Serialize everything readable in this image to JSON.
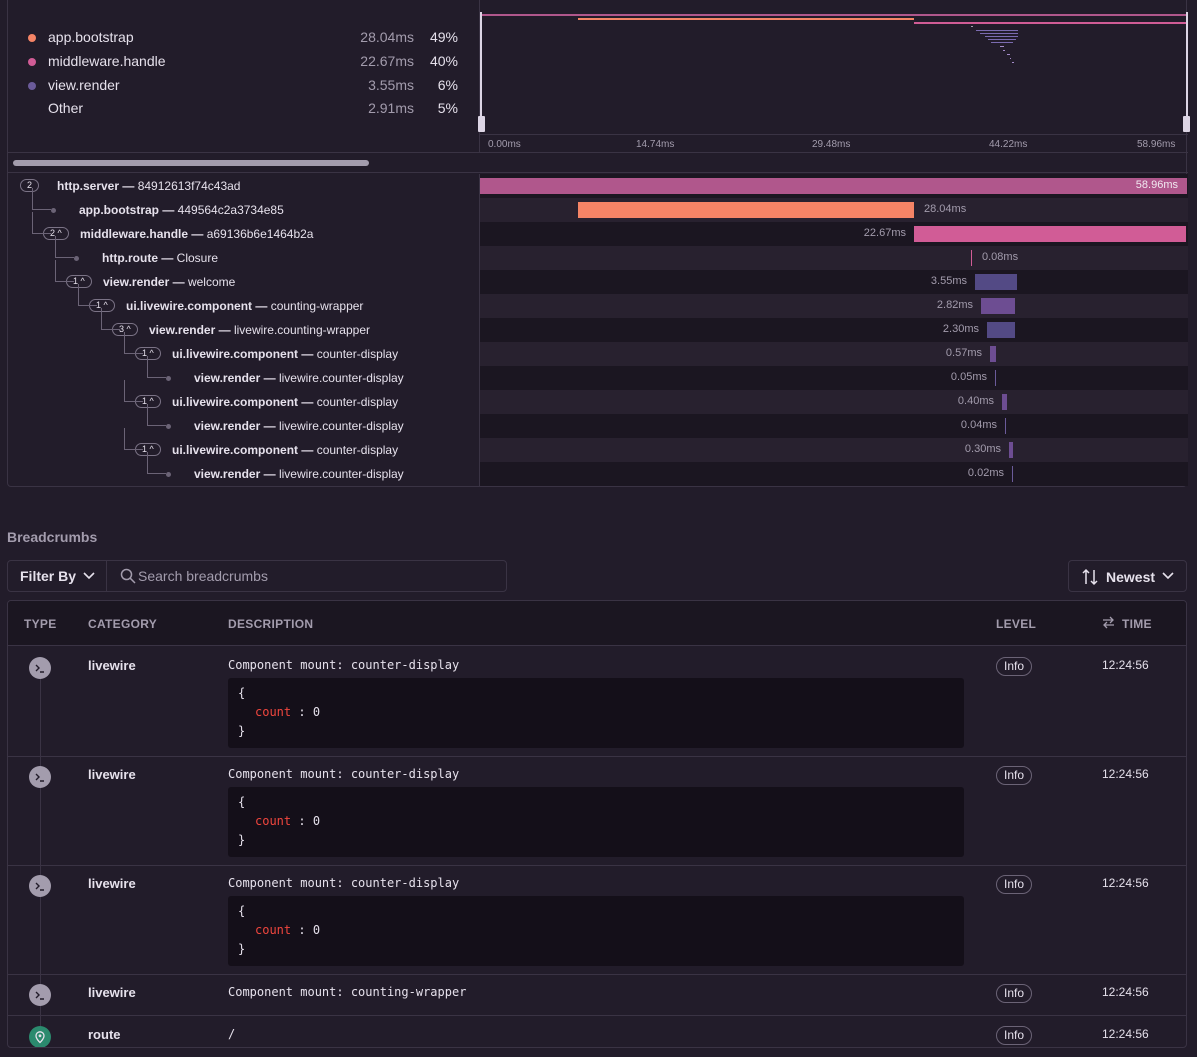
{
  "summary": [
    {
      "name": "app.bootstrap",
      "duration": "28.04ms",
      "percent": "49%",
      "color": "#f58466"
    },
    {
      "name": "middleware.handle",
      "duration": "22.67ms",
      "percent": "40%",
      "color": "#d15c96"
    },
    {
      "name": "view.render",
      "duration": "3.55ms",
      "percent": "6%",
      "color": "#6b5b9a"
    },
    {
      "name": "Other",
      "duration": "2.91ms",
      "percent": "5%",
      "color": ""
    }
  ],
  "minimap": {
    "ticks": [
      "0.00ms",
      "14.74ms",
      "29.48ms",
      "44.22ms",
      "58.96ms"
    ]
  },
  "spans": [
    {
      "count": "2",
      "op": "http.server",
      "desc": "84912613f74c43ad",
      "duration": "58.96ms"
    },
    {
      "count": "",
      "op": "app.bootstrap",
      "desc": "449564c2a3734e85",
      "duration": "28.04ms"
    },
    {
      "count": "2",
      "op": "middleware.handle",
      "desc": "a69136b6e1464b2a",
      "duration": "22.67ms"
    },
    {
      "count": "",
      "op": "http.route",
      "desc": "Closure",
      "duration": "0.08ms"
    },
    {
      "count": "1",
      "op": "view.render",
      "desc": "welcome",
      "duration": "3.55ms"
    },
    {
      "count": "1",
      "op": "ui.livewire.component",
      "desc": "counting-wrapper",
      "duration": "2.82ms"
    },
    {
      "count": "3",
      "op": "view.render",
      "desc": "livewire.counting-wrapper",
      "duration": "2.30ms"
    },
    {
      "count": "1",
      "op": "ui.livewire.component",
      "desc": "counter-display",
      "duration": "0.57ms"
    },
    {
      "count": "",
      "op": "view.render",
      "desc": "livewire.counter-display",
      "duration": "0.05ms"
    },
    {
      "count": "1",
      "op": "ui.livewire.component",
      "desc": "counter-display",
      "duration": "0.40ms"
    },
    {
      "count": "",
      "op": "view.render",
      "desc": "livewire.counter-display",
      "duration": "0.04ms"
    },
    {
      "count": "1",
      "op": "ui.livewire.component",
      "desc": "counter-display",
      "duration": "0.30ms"
    },
    {
      "count": "",
      "op": "view.render",
      "desc": "livewire.counter-display",
      "duration": "0.02ms"
    }
  ],
  "span_separator": "—",
  "breadcrumbs": {
    "title": "Breadcrumbs",
    "filter_label": "Filter By",
    "search_placeholder": "Search breadcrumbs",
    "sort_label": "Newest",
    "headers": {
      "type": "TYPE",
      "category": "CATEGORY",
      "description": "DESCRIPTION",
      "level": "LEVEL",
      "time": "TIME"
    },
    "rows": [
      {
        "icon": "terminal-icon",
        "category": "livewire",
        "description": "Component mount: counter-display",
        "data_open": "{",
        "data_key": "count",
        "data_colon": " : ",
        "data_value": "0",
        "data_close": "}",
        "level": "Info",
        "time": "12:24:56"
      },
      {
        "icon": "terminal-icon",
        "category": "livewire",
        "description": "Component mount: counter-display",
        "data_open": "{",
        "data_key": "count",
        "data_colon": " : ",
        "data_value": "0",
        "data_close": "}",
        "level": "Info",
        "time": "12:24:56"
      },
      {
        "icon": "terminal-icon",
        "category": "livewire",
        "description": "Component mount: counter-display",
        "data_open": "{",
        "data_key": "count",
        "data_colon": " : ",
        "data_value": "0",
        "data_close": "}",
        "level": "Info",
        "time": "12:24:56"
      },
      {
        "icon": "terminal-icon",
        "category": "livewire",
        "description": "Component mount: counting-wrapper",
        "level": "Info",
        "time": "12:24:56"
      },
      {
        "icon": "location-pin-icon",
        "category": "route",
        "description": "/",
        "level": "Info",
        "time": "12:24:56"
      }
    ]
  }
}
